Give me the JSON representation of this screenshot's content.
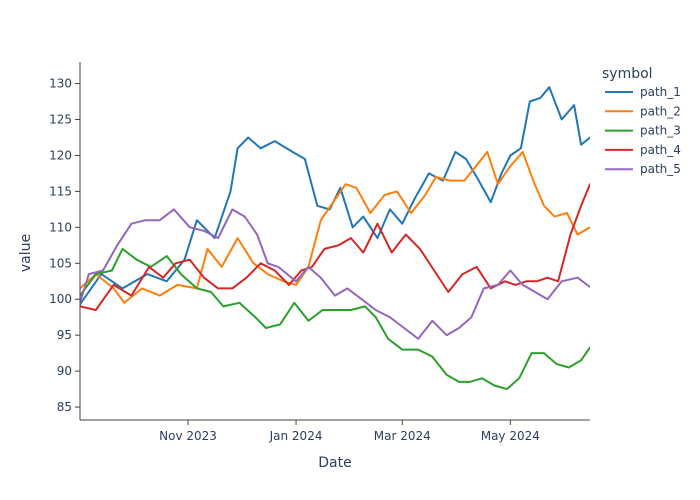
{
  "chart_data": {
    "type": "line",
    "xlabel": "Date",
    "ylabel": "value",
    "legend_title": "symbol",
    "legend_position": "right",
    "x_start": "2023-09-01",
    "x_end": "2024-06-15",
    "xlim": [
      "2023-09-01",
      "2024-06-15"
    ],
    "ylim": [
      83.2,
      133
    ],
    "y_ticks": [
      85,
      90,
      95,
      100,
      105,
      110,
      115,
      120,
      125,
      130
    ],
    "x_ticks": [
      {
        "date": "2023-11-01",
        "label": "Nov 2023"
      },
      {
        "date": "2024-01-01",
        "label": "Jan 2024"
      },
      {
        "date": "2024-03-01",
        "label": "Mar 2024"
      },
      {
        "date": "2024-05-01",
        "label": "May 2024"
      }
    ],
    "grid": false,
    "series": [
      {
        "name": "path_1",
        "color": "#1f77b4",
        "x": [
          "2023-09-01",
          "2023-09-13",
          "2023-09-25",
          "2023-10-09",
          "2023-10-20",
          "2023-10-30",
          "2023-11-06",
          "2023-11-16",
          "2023-11-25",
          "2023-11-29",
          "2023-12-05",
          "2023-12-12",
          "2023-12-20",
          "2023-12-30",
          "2024-01-06",
          "2024-01-13",
          "2024-01-20",
          "2024-01-26",
          "2024-02-02",
          "2024-02-08",
          "2024-02-16",
          "2024-02-23",
          "2024-03-01",
          "2024-03-08",
          "2024-03-16",
          "2024-03-24",
          "2024-03-31",
          "2024-04-06",
          "2024-04-12",
          "2024-04-20",
          "2024-04-26",
          "2024-05-01",
          "2024-05-07",
          "2024-05-12",
          "2024-05-18",
          "2024-05-23",
          "2024-05-30",
          "2024-06-06",
          "2024-06-10",
          "2024-06-15"
        ],
        "values": [
          99.3,
          103.5,
          101.5,
          103.5,
          102.5,
          105.5,
          111.0,
          108.5,
          115.0,
          121.0,
          122.5,
          121.0,
          122.0,
          120.5,
          119.5,
          113.0,
          112.5,
          115.5,
          110.0,
          111.5,
          108.5,
          112.5,
          110.5,
          114.0,
          117.5,
          116.5,
          120.5,
          119.5,
          117.0,
          113.5,
          117.5,
          120.0,
          121.0,
          127.5,
          128.0,
          129.5,
          125.0,
          127.0,
          121.5,
          122.5
        ]
      },
      {
        "name": "path_2",
        "color": "#ff7f0e",
        "x": [
          "2023-09-01",
          "2023-09-10",
          "2023-09-20",
          "2023-09-26",
          "2023-10-06",
          "2023-10-16",
          "2023-10-26",
          "2023-11-06",
          "2023-11-12",
          "2023-11-20",
          "2023-11-29",
          "2023-12-08",
          "2023-12-16",
          "2023-12-25",
          "2024-01-01",
          "2024-01-08",
          "2024-01-15",
          "2024-01-22",
          "2024-01-29",
          "2024-02-04",
          "2024-02-12",
          "2024-02-20",
          "2024-02-27",
          "2024-03-06",
          "2024-03-14",
          "2024-03-20",
          "2024-03-28",
          "2024-04-05",
          "2024-04-10",
          "2024-04-18",
          "2024-04-24",
          "2024-05-01",
          "2024-05-08",
          "2024-05-14",
          "2024-05-20",
          "2024-05-26",
          "2024-06-02",
          "2024-06-08",
          "2024-06-15"
        ],
        "values": [
          101.5,
          103.5,
          101.5,
          99.5,
          101.5,
          100.5,
          102.0,
          101.5,
          107.0,
          104.5,
          108.5,
          105.0,
          103.5,
          102.5,
          102.0,
          104.5,
          111.0,
          113.5,
          116.0,
          115.5,
          112.0,
          114.5,
          115.0,
          112.0,
          114.5,
          117.0,
          116.5,
          116.5,
          118.0,
          120.5,
          116.0,
          118.5,
          120.5,
          116.5,
          113.0,
          111.5,
          112.0,
          109.0,
          110.0
        ]
      },
      {
        "name": "path_3",
        "color": "#2ca02c",
        "x": [
          "2023-09-01",
          "2023-09-10",
          "2023-09-19",
          "2023-09-25",
          "2023-10-03",
          "2023-10-11",
          "2023-10-20",
          "2023-10-28",
          "2023-11-06",
          "2023-11-14",
          "2023-11-21",
          "2023-11-30",
          "2023-12-09",
          "2023-12-15",
          "2023-12-23",
          "2023-12-31",
          "2024-01-08",
          "2024-01-16",
          "2024-01-24",
          "2024-02-01",
          "2024-02-09",
          "2024-02-15",
          "2024-02-22",
          "2024-03-01",
          "2024-03-10",
          "2024-03-18",
          "2024-03-26",
          "2024-04-02",
          "2024-04-08",
          "2024-04-15",
          "2024-04-22",
          "2024-04-29",
          "2024-05-06",
          "2024-05-13",
          "2024-05-20",
          "2024-05-27",
          "2024-06-03",
          "2024-06-10",
          "2024-06-15"
        ],
        "values": [
          100.5,
          103.5,
          104.0,
          107.0,
          105.5,
          104.5,
          106.0,
          103.5,
          101.5,
          101.0,
          99.0,
          99.5,
          97.5,
          96.0,
          96.5,
          99.5,
          97.0,
          98.5,
          98.5,
          98.5,
          99.0,
          97.5,
          94.5,
          93.0,
          93.0,
          92.0,
          89.5,
          88.5,
          88.5,
          89.0,
          88.0,
          87.5,
          89.0,
          92.5,
          92.5,
          91.0,
          90.5,
          91.5,
          93.3
        ]
      },
      {
        "name": "path_4",
        "color": "#d62728",
        "x": [
          "2023-09-01",
          "2023-09-10",
          "2023-09-20",
          "2023-09-30",
          "2023-10-10",
          "2023-10-18",
          "2023-10-25",
          "2023-11-02",
          "2023-11-10",
          "2023-11-18",
          "2023-11-26",
          "2023-12-04",
          "2023-12-12",
          "2023-12-20",
          "2023-12-28",
          "2024-01-04",
          "2024-01-10",
          "2024-01-17",
          "2024-01-25",
          "2024-02-01",
          "2024-02-08",
          "2024-02-16",
          "2024-02-24",
          "2024-03-03",
          "2024-03-11",
          "2024-03-19",
          "2024-03-27",
          "2024-04-04",
          "2024-04-12",
          "2024-04-20",
          "2024-04-28",
          "2024-05-04",
          "2024-05-10",
          "2024-05-16",
          "2024-05-22",
          "2024-05-28",
          "2024-06-04",
          "2024-06-10",
          "2024-06-15"
        ],
        "values": [
          99.0,
          98.5,
          102.0,
          100.5,
          104.5,
          103.0,
          105.0,
          105.5,
          103.0,
          101.5,
          101.5,
          103.0,
          105.0,
          104.0,
          102.0,
          104.0,
          104.5,
          107.0,
          107.5,
          108.5,
          106.5,
          110.5,
          106.5,
          109.0,
          107.0,
          104.0,
          101.0,
          103.5,
          104.5,
          101.5,
          102.5,
          102.0,
          102.5,
          102.5,
          103.0,
          102.5,
          109.0,
          113.0,
          116.0
        ]
      },
      {
        "name": "path_5",
        "color": "#9467bd",
        "x": [
          "2023-09-01",
          "2023-09-06",
          "2023-09-14",
          "2023-09-22",
          "2023-09-30",
          "2023-10-08",
          "2023-10-16",
          "2023-10-24",
          "2023-11-02",
          "2023-11-10",
          "2023-11-18",
          "2023-11-26",
          "2023-12-03",
          "2023-12-10",
          "2023-12-16",
          "2023-12-22",
          "2024-01-01",
          "2024-01-08",
          "2024-01-15",
          "2024-01-23",
          "2024-01-30",
          "2024-02-07",
          "2024-02-15",
          "2024-02-23",
          "2024-03-02",
          "2024-03-10",
          "2024-03-18",
          "2024-03-26",
          "2024-04-02",
          "2024-04-09",
          "2024-04-16",
          "2024-04-24",
          "2024-05-01",
          "2024-05-08",
          "2024-05-15",
          "2024-05-22",
          "2024-05-30",
          "2024-06-08",
          "2024-06-15"
        ],
        "values": [
          99.5,
          103.5,
          104.0,
          107.5,
          110.5,
          111.0,
          111.0,
          112.5,
          110.0,
          109.5,
          108.5,
          112.5,
          111.5,
          109.0,
          105.0,
          104.5,
          102.5,
          104.5,
          103.0,
          100.5,
          101.5,
          100.0,
          98.5,
          97.5,
          96.0,
          94.5,
          97.0,
          95.0,
          96.0,
          97.5,
          101.5,
          102.0,
          104.0,
          102.0,
          101.0,
          100.0,
          102.5,
          103.0,
          101.7
        ]
      }
    ]
  }
}
